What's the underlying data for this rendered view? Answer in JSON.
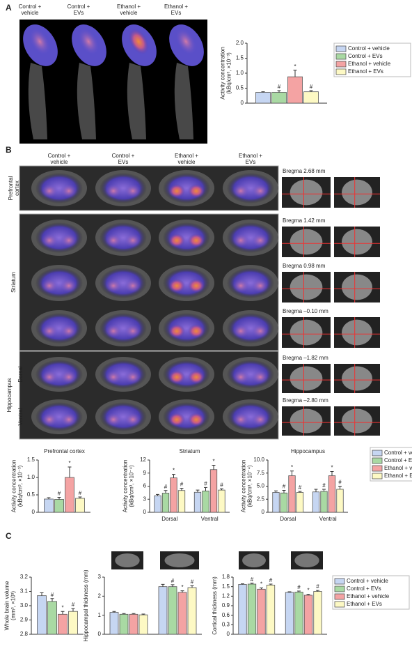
{
  "panel_labels": [
    "A",
    "B",
    "C"
  ],
  "panel_a": {
    "columns": [
      [
        "Control +",
        "vehicle"
      ],
      [
        "Control +",
        "EVs"
      ],
      [
        "Ethanol +",
        "vehicle"
      ],
      [
        "Ethanol +",
        "EVs"
      ]
    ]
  },
  "panel_b": {
    "columns": [
      [
        "Control +",
        "vehicle"
      ],
      [
        "Control +",
        "EVs"
      ],
      [
        "Ethanol +",
        "vehicle"
      ],
      [
        "Ethanol +",
        "EVs"
      ]
    ],
    "regions": {
      "prefrontal": [
        "Prefrontal",
        "cortex"
      ],
      "striatum": "Striatum",
      "hippocampus": "Hippocampus",
      "dorsal": "Dorsal",
      "ventral": "Ventral"
    },
    "bregma": [
      "Bregma 2.68 mm",
      "Bregma 1.42 mm",
      "Bregma 0.98 mm",
      "Bregma –0.10 mm",
      "Bregma –1.82 mm",
      "Bregma –2.80 mm"
    ]
  },
  "chart_data": [
    {
      "type": "bar",
      "ylabel": [
        "Activity concentration",
        "(kBq/cm³, ×10⁻³)"
      ],
      "ylim": [
        0,
        2
      ],
      "yticks": [
        0,
        0.5,
        {
          "value": 1,
          "label": "1.0"
        },
        1.5,
        {
          "value": 2,
          "label": "2.0"
        }
      ],
      "legend": "right",
      "series": [
        {
          "name": "Control + vehicle",
          "color": "#c6d6f2",
          "values": [
            0.36
          ],
          "errors": [
            0.02
          ],
          "marks": [
            null
          ]
        },
        {
          "name": "Control + EVs",
          "color": "#a9d9a3",
          "values": [
            0.36
          ],
          "errors": [
            0.06
          ],
          "marks": [
            "#"
          ]
        },
        {
          "name": "Ethanol + vehicle",
          "color": "#f4a3a3",
          "values": [
            0.88
          ],
          "errors": [
            0.22
          ],
          "marks": [
            "*"
          ]
        },
        {
          "name": "Ethanol + EVs",
          "color": "#fdf9c4",
          "values": [
            0.38
          ],
          "errors": [
            0.04
          ],
          "marks": [
            "#"
          ]
        }
      ]
    },
    {
      "type": "bar",
      "title": "Prefrontal cortex",
      "ylabel": [
        "Activity concentration",
        "(kBq/cm³, ×10⁻³)"
      ],
      "ylim": [
        0,
        1.5
      ],
      "yticks": [
        0,
        0.5,
        {
          "value": 1,
          "label": "1.0"
        },
        1.5
      ],
      "series": [
        {
          "color": "#c6d6f2",
          "values": [
            0.38
          ],
          "errors": [
            0.04
          ],
          "marks": [
            null
          ]
        },
        {
          "color": "#a9d9a3",
          "values": [
            0.37
          ],
          "errors": [
            0.06
          ],
          "marks": [
            "#"
          ]
        },
        {
          "color": "#f4a3a3",
          "values": [
            1.0
          ],
          "errors": [
            0.3
          ],
          "marks": [
            "*"
          ]
        },
        {
          "color": "#fdf9c4",
          "values": [
            0.4
          ],
          "errors": [
            0.04
          ],
          "marks": [
            "#"
          ]
        }
      ]
    },
    {
      "type": "bar",
      "title": "Striatum",
      "ylabel": [
        "Activity concentration",
        "(kBq/cm³, ×10⁻⁴)"
      ],
      "ylim": [
        0,
        12
      ],
      "yticks": [
        0,
        3,
        6,
        9,
        12
      ],
      "categories": [
        "Dorsal",
        "Ventral"
      ],
      "series": [
        {
          "color": "#c6d6f2",
          "values": [
            3.8,
            4.6
          ],
          "errors": [
            0.3,
            0.5
          ],
          "marks": [
            null,
            null
          ]
        },
        {
          "color": "#a9d9a3",
          "values": [
            4.4,
            4.9
          ],
          "errors": [
            0.6,
            0.8
          ],
          "marks": [
            "#",
            "#"
          ]
        },
        {
          "color": "#f4a3a3",
          "values": [
            7.9,
            9.8
          ],
          "errors": [
            0.8,
            1.0
          ],
          "marks": [
            "*",
            "*"
          ]
        },
        {
          "color": "#fdf9c4",
          "values": [
            5.0,
            5.1
          ],
          "errors": [
            0.5,
            0.3
          ],
          "marks": [
            "#",
            "#"
          ]
        }
      ]
    },
    {
      "type": "bar",
      "title": "Hippocampus",
      "ylabel": [
        "Activity concentration",
        "(kBq/cm³, ×10⁻⁴)"
      ],
      "ylim": [
        0,
        10
      ],
      "yticks": [
        0,
        2.5,
        {
          "value": 5,
          "label": "5.0"
        },
        7.5,
        {
          "value": 10,
          "label": "10.0"
        }
      ],
      "categories": [
        "Dorsal",
        "Ventral"
      ],
      "legend": "right",
      "series": [
        {
          "name": "Control + vehicle",
          "color": "#c6d6f2",
          "values": [
            3.8,
            3.9
          ],
          "errors": [
            0.3,
            0.5
          ],
          "marks": [
            null,
            null
          ]
        },
        {
          "name": "Control + EVs",
          "color": "#a9d9a3",
          "values": [
            3.7,
            4.0
          ],
          "errors": [
            0.5,
            0.4
          ],
          "marks": [
            "#",
            "#"
          ]
        },
        {
          "name": "Ethanol + vehicle",
          "color": "#f4a3a3",
          "values": [
            7.0,
            7.0
          ],
          "errors": [
            0.9,
            0.8
          ],
          "marks": [
            "*",
            "*"
          ]
        },
        {
          "name": "Ethanol + EVs",
          "color": "#fdf9c4",
          "values": [
            3.8,
            4.4
          ],
          "errors": [
            0.2,
            0.6
          ],
          "marks": [
            "#",
            "#"
          ]
        }
      ]
    },
    {
      "type": "bar",
      "ylabel": [
        "Whole brain volume",
        "(mm³, ×10³)"
      ],
      "ylim": [
        2.8,
        3.2
      ],
      "yticks": [
        2.8,
        2.9,
        {
          "value": 3,
          "label": "3.0"
        },
        3.1,
        3.2
      ],
      "series": [
        {
          "color": "#c6d6f2",
          "values": [
            3.07
          ],
          "errors": [
            0.02
          ],
          "marks": [
            null
          ]
        },
        {
          "color": "#a9d9a3",
          "values": [
            3.03
          ],
          "errors": [
            0.02
          ],
          "marks": [
            "#"
          ]
        },
        {
          "color": "#f4a3a3",
          "values": [
            2.94
          ],
          "errors": [
            0.02
          ],
          "marks": [
            "*"
          ]
        },
        {
          "color": "#fdf9c4",
          "values": [
            2.96
          ],
          "errors": [
            0.02
          ],
          "marks": [
            "#"
          ]
        }
      ]
    },
    {
      "type": "bar",
      "ylabel": [
        "Hippocampal thickness (mm)"
      ],
      "ylim": [
        0,
        3
      ],
      "yticks": [
        0,
        1,
        2,
        3
      ],
      "categories": [
        null,
        null
      ],
      "series": [
        {
          "color": "#c6d6f2",
          "values": [
            1.15,
            2.5
          ],
          "errors": [
            0.05,
            0.12
          ],
          "marks": [
            null,
            null
          ]
        },
        {
          "color": "#a9d9a3",
          "values": [
            1.05,
            2.5
          ],
          "errors": [
            0.04,
            0.1
          ],
          "marks": [
            null,
            "#"
          ]
        },
        {
          "color": "#f4a3a3",
          "values": [
            1.05,
            2.2
          ],
          "errors": [
            0.04,
            0.08
          ],
          "marks": [
            null,
            "*"
          ]
        },
        {
          "color": "#fdf9c4",
          "values": [
            1.02,
            2.45
          ],
          "errors": [
            0.04,
            0.1
          ],
          "marks": [
            null,
            "#"
          ]
        }
      ]
    },
    {
      "type": "bar",
      "ylabel": [
        "Cortical thickness (mm)"
      ],
      "ylim": [
        0,
        1.8
      ],
      "yticks": [
        0,
        0.3,
        0.6,
        0.9,
        1.2,
        1.5,
        1.8
      ],
      "categories": [
        null,
        null
      ],
      "legend": "right",
      "series": [
        {
          "name": "Control + vehicle",
          "color": "#c6d6f2",
          "values": [
            1.57,
            1.32
          ],
          "errors": [
            0.02,
            0.02
          ],
          "marks": [
            null,
            null
          ]
        },
        {
          "name": "Control + EVs",
          "color": "#a9d9a3",
          "values": [
            1.58,
            1.33
          ],
          "errors": [
            0.03,
            0.03
          ],
          "marks": [
            "#",
            "#"
          ]
        },
        {
          "name": "Ethanol + vehicle",
          "color": "#f4a3a3",
          "values": [
            1.42,
            1.23
          ],
          "errors": [
            0.04,
            0.03
          ],
          "marks": [
            "*",
            "*"
          ]
        },
        {
          "name": "Ethanol + EVs",
          "color": "#fdf9c4",
          "values": [
            1.55,
            1.35
          ],
          "errors": [
            0.03,
            0.03
          ],
          "marks": [
            "#",
            "#"
          ]
        }
      ]
    }
  ]
}
